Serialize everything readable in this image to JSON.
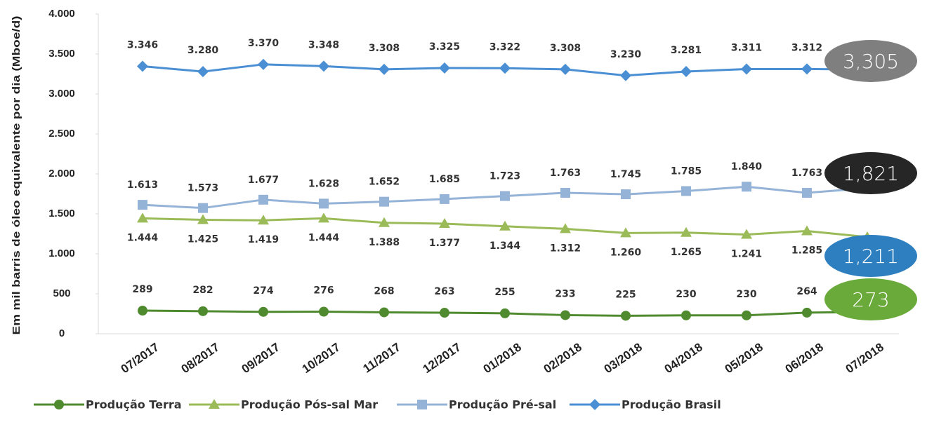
{
  "chart_data": {
    "type": "line",
    "y_label": "Em mil barris de óleo equivalente por dia (Mboe/d)",
    "categories": [
      "07/2017",
      "08/2017",
      "09/2017",
      "10/2017",
      "11/2017",
      "12/2017",
      "01/2018",
      "02/2018",
      "03/2018",
      "04/2018",
      "05/2018",
      "06/2018",
      "07/2018"
    ],
    "ylim": [
      0,
      4000
    ],
    "yticks": [
      0,
      500,
      {
        "value": 1000,
        "label": "1.000"
      },
      {
        "value": 1500,
        "label": "1.500"
      },
      {
        "value": 2000,
        "label": "2.000"
      },
      {
        "value": 2500,
        "label": "2.500"
      },
      {
        "value": 3000,
        "label": "3.000"
      },
      {
        "value": 3500,
        "label": "3.500"
      },
      {
        "value": 4000,
        "label": "4.000"
      }
    ],
    "grid": false,
    "legend": "bottom",
    "series": [
      {
        "name": "Produção Terra",
        "color": "#4f8a2e",
        "marker": "circle",
        "bubble_color": "#6aaa3a",
        "values": [
          289,
          282,
          274,
          276,
          268,
          263,
          255,
          233,
          225,
          230,
          230,
          264,
          273
        ]
      },
      {
        "name": "Produção Pós-sal Mar",
        "color": "#9bbb59",
        "marker": "triangle",
        "bubble_color": "#2e7fc0",
        "values": [
          1444,
          1425,
          1419,
          1444,
          1388,
          1377,
          1344,
          1312,
          1260,
          1265,
          1241,
          1285,
          1211
        ],
        "value_labels": [
          "1.444",
          "1.425",
          "1.419",
          "1.444",
          "1.388",
          "1.377",
          "1.344",
          "1.312",
          "1.260",
          "1.265",
          "1.241",
          "1.285",
          "1,211"
        ]
      },
      {
        "name": "Produção Pré-sal",
        "color": "#95b3d7",
        "marker": "square",
        "bubble_color": "#262626",
        "values": [
          1613,
          1573,
          1677,
          1628,
          1652,
          1685,
          1723,
          1763,
          1745,
          1785,
          1840,
          1763,
          1821
        ],
        "value_labels": [
          "1.613",
          "1.573",
          "1.677",
          "1.628",
          "1.652",
          "1.685",
          "1.723",
          "1.763",
          "1.745",
          "1.785",
          "1.840",
          "1.763",
          "1,821"
        ]
      },
      {
        "name": "Produção Brasil",
        "color": "#4a8fd4",
        "marker": "diamond",
        "bubble_color": "#7f7f7f",
        "values": [
          3346,
          3280,
          3370,
          3348,
          3308,
          3325,
          3322,
          3308,
          3230,
          3281,
          3311,
          3312,
          3305
        ],
        "value_labels": [
          "3.346",
          "3.280",
          "3.370",
          "3.348",
          "3.308",
          "3.325",
          "3.322",
          "3.308",
          "3.230",
          "3.281",
          "3.311",
          "3.312",
          "3,305"
        ]
      }
    ]
  }
}
